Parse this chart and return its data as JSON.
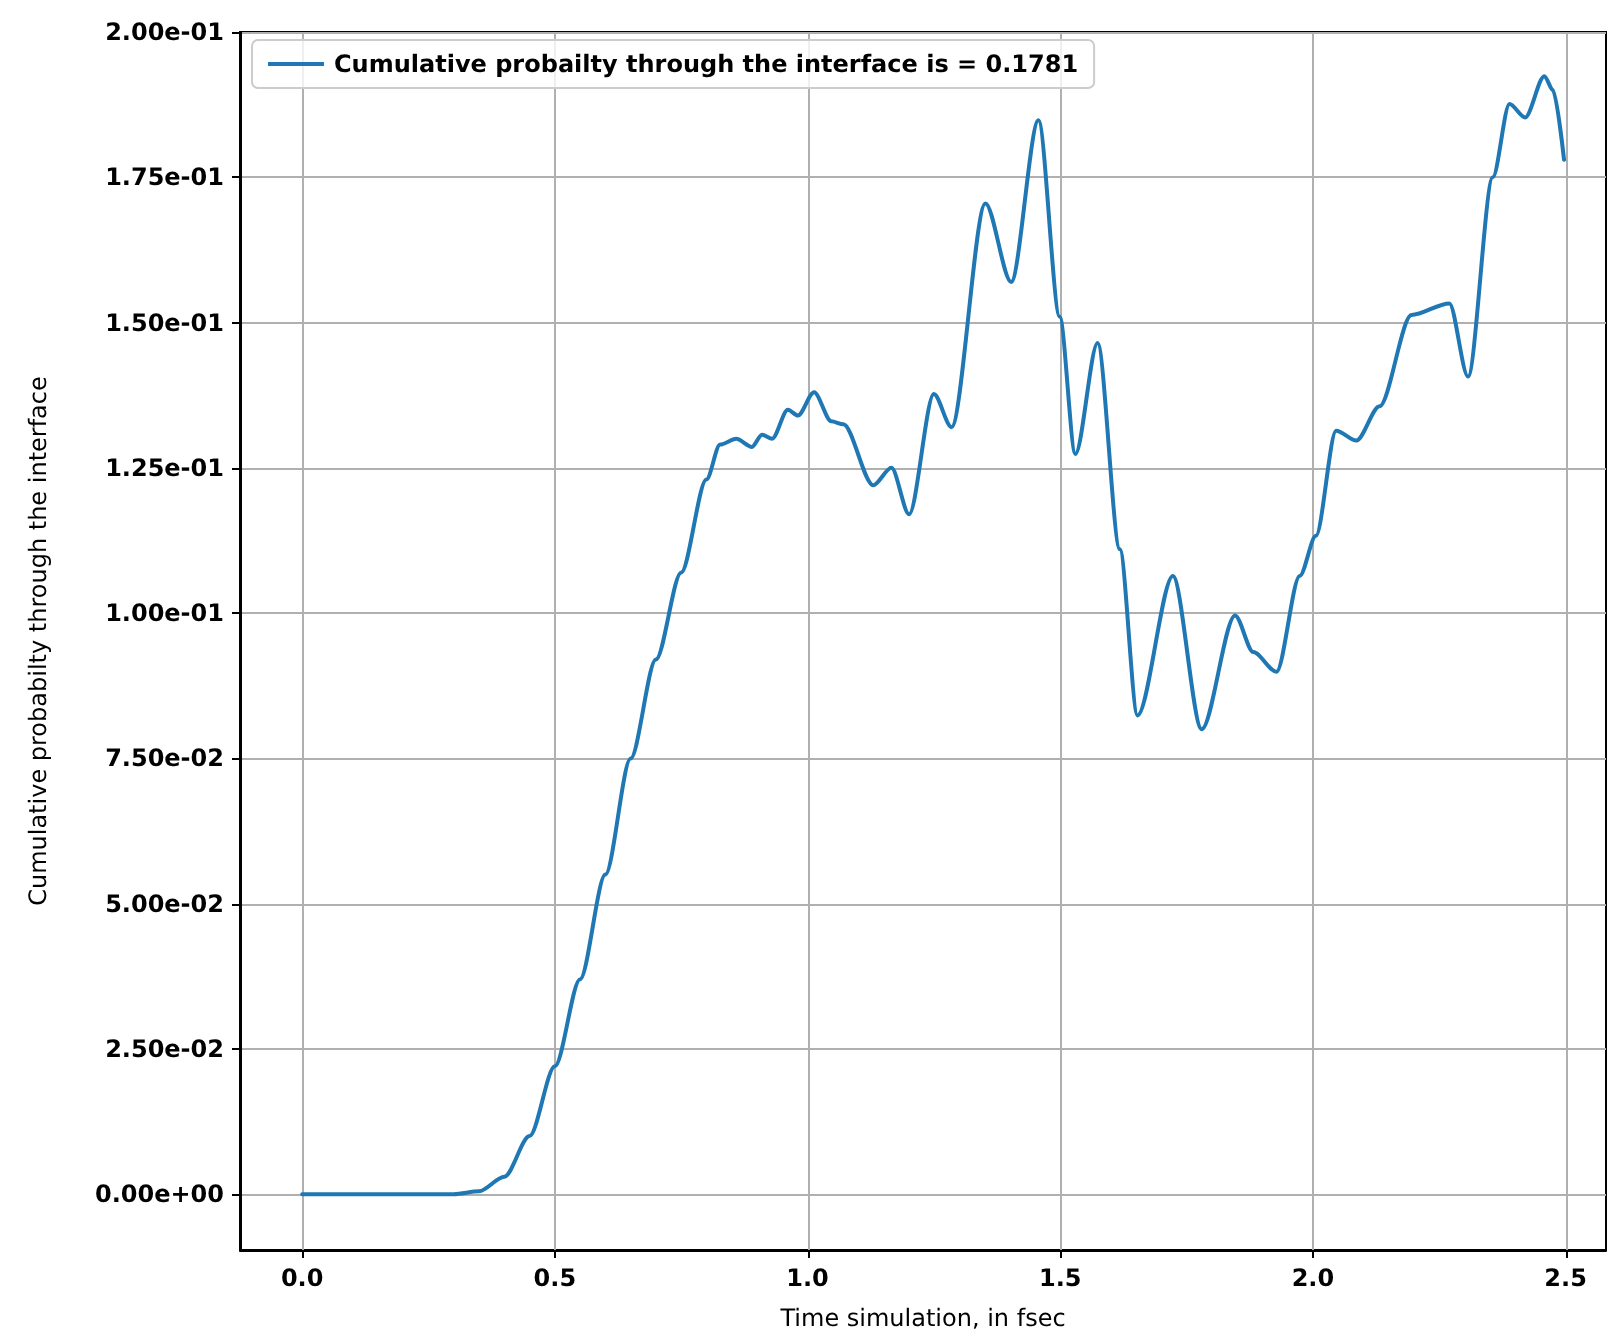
{
  "chart_data": {
    "type": "line",
    "xlabel": "Time simulation, in fsec",
    "ylabel": "Cumulative probabilty through the interface",
    "x": [
      0,
      0.3,
      0.35,
      0.4,
      0.45,
      0.5,
      0.55,
      0.6,
      0.65,
      0.7,
      0.75,
      0.8,
      0.827,
      0.859,
      0.89,
      0.91,
      0.93,
      0.961,
      0.981,
      1.013,
      1.047,
      1.071,
      1.13,
      1.166,
      1.201,
      1.25,
      1.285,
      1.352,
      1.403,
      1.457,
      1.499,
      1.53,
      1.574,
      1.618,
      1.653,
      1.723,
      1.78,
      1.846,
      1.882,
      1.928,
      1.974,
      2.006,
      2.046,
      2.086,
      2.132,
      2.195,
      2.27,
      2.307,
      2.356,
      2.389,
      2.42,
      2.458,
      2.475,
      2.497
    ],
    "series": [
      {
        "name": "Cumulative probailty through the interface is = 0.1781",
        "color": "#1f77b4",
        "values": [
          0,
          0,
          0.0005,
          0.003,
          0.01,
          0.022,
          0.037,
          0.055,
          0.075,
          0.092,
          0.107,
          0.123,
          0.129,
          0.13,
          0.1286,
          0.1307,
          0.13,
          0.135,
          0.134,
          0.138,
          0.133,
          0.1325,
          0.122,
          0.125,
          0.117,
          0.1377,
          0.132,
          0.1705,
          0.157,
          0.1848,
          0.151,
          0.1274,
          0.1465,
          0.111,
          0.0824,
          0.1064,
          0.08,
          0.0996,
          0.0933,
          0.0899,
          0.1064,
          0.1133,
          0.1314,
          0.1297,
          0.1356,
          0.1513,
          0.1533,
          0.1407,
          0.175,
          0.1876,
          0.1853,
          0.1924,
          0.19,
          0.178
        ]
      }
    ],
    "xlim": [
      -0.123,
      2.58
    ],
    "ylim": [
      -0.0096,
      0.2
    ],
    "xticks": [
      {
        "value": 0,
        "label": "0.0"
      },
      0.5,
      {
        "value": 1,
        "label": "1.0"
      },
      1.5,
      {
        "value": 2,
        "label": "2.0"
      },
      2.5
    ],
    "yticks": [
      {
        "value": 0,
        "label": "0.00e+00"
      },
      {
        "value": 0.025,
        "label": "2.50e-02"
      },
      {
        "value": 0.05,
        "label": "5.00e-02"
      },
      {
        "value": 0.075,
        "label": "7.50e-02"
      },
      {
        "value": 0.1,
        "label": "1.00e-01"
      },
      {
        "value": 0.125,
        "label": "1.25e-01"
      },
      {
        "value": 0.15,
        "label": "1.50e-01"
      },
      {
        "value": 0.175,
        "label": "1.75e-01"
      },
      {
        "value": 0.2,
        "label": "2.00e-01"
      }
    ],
    "grid": true,
    "legend": "top left",
    "marker": "none",
    "line_style": "solid"
  }
}
